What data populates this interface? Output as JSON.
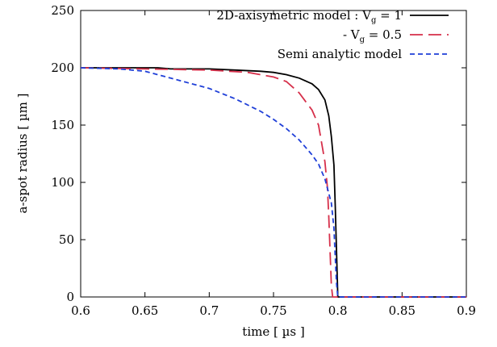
{
  "chart_data": {
    "type": "line",
    "xlabel": "time [ µs ]",
    "ylabel": "a-spot radius [ µm ]",
    "xlim": [
      0.6,
      0.9
    ],
    "ylim": [
      0,
      250
    ],
    "xticks": [
      0.6,
      0.65,
      0.7,
      0.75,
      0.8,
      0.85,
      0.9
    ],
    "xtick_labels": [
      "0.6",
      "0.65",
      "0.7",
      "0.75",
      "0.8",
      "0.85",
      "0.9"
    ],
    "yticks": [
      0,
      50,
      100,
      150,
      200,
      250
    ],
    "ytick_labels": [
      "0",
      "50",
      "100",
      "150",
      "200",
      "250"
    ],
    "grid": false,
    "legend_position": "top-right",
    "series": [
      {
        "legend_main": "2D-axisymetric model : V",
        "legend_sub": "g",
        "legend_tail": " = 1",
        "color": "#000000",
        "dash": "solid",
        "points": [
          [
            0.6,
            200
          ],
          [
            0.66,
            200
          ],
          [
            0.67,
            199
          ],
          [
            0.7,
            199
          ],
          [
            0.72,
            198
          ],
          [
            0.74,
            197
          ],
          [
            0.75,
            196
          ],
          [
            0.76,
            194
          ],
          [
            0.77,
            191
          ],
          [
            0.78,
            186
          ],
          [
            0.785,
            181
          ],
          [
            0.79,
            172
          ],
          [
            0.793,
            158
          ],
          [
            0.795,
            140
          ],
          [
            0.797,
            115
          ],
          [
            0.798,
            80
          ],
          [
            0.799,
            40
          ],
          [
            0.8,
            0
          ],
          [
            0.9,
            0
          ]
        ]
      },
      {
        "legend_main": "-              V",
        "legend_sub": "g",
        "legend_tail": " = 0.5",
        "color": "#d62f4a",
        "dash": "long-dash",
        "points": [
          [
            0.6,
            200
          ],
          [
            0.65,
            199
          ],
          [
            0.7,
            198
          ],
          [
            0.73,
            196
          ],
          [
            0.75,
            192
          ],
          [
            0.76,
            188
          ],
          [
            0.77,
            178
          ],
          [
            0.78,
            163
          ],
          [
            0.785,
            150
          ],
          [
            0.79,
            118
          ],
          [
            0.792,
            95
          ],
          [
            0.793,
            70
          ],
          [
            0.794,
            40
          ],
          [
            0.795,
            10
          ],
          [
            0.796,
            0
          ],
          [
            0.9,
            0
          ]
        ]
      },
      {
        "legend_main": "Semi analytic model",
        "legend_sub": "",
        "legend_tail": "",
        "color": "#1f3fd8",
        "dash": "short-dash",
        "points": [
          [
            0.6,
            200
          ],
          [
            0.63,
            199
          ],
          [
            0.65,
            197
          ],
          [
            0.67,
            191
          ],
          [
            0.7,
            182
          ],
          [
            0.72,
            173
          ],
          [
            0.74,
            162
          ],
          [
            0.75,
            155
          ],
          [
            0.76,
            147
          ],
          [
            0.77,
            137
          ],
          [
            0.78,
            124
          ],
          [
            0.785,
            116
          ],
          [
            0.79,
            103
          ],
          [
            0.795,
            82
          ],
          [
            0.797,
            60
          ],
          [
            0.798,
            35
          ],
          [
            0.799,
            12
          ],
          [
            0.8,
            0
          ],
          [
            0.9,
            0
          ]
        ]
      }
    ]
  }
}
